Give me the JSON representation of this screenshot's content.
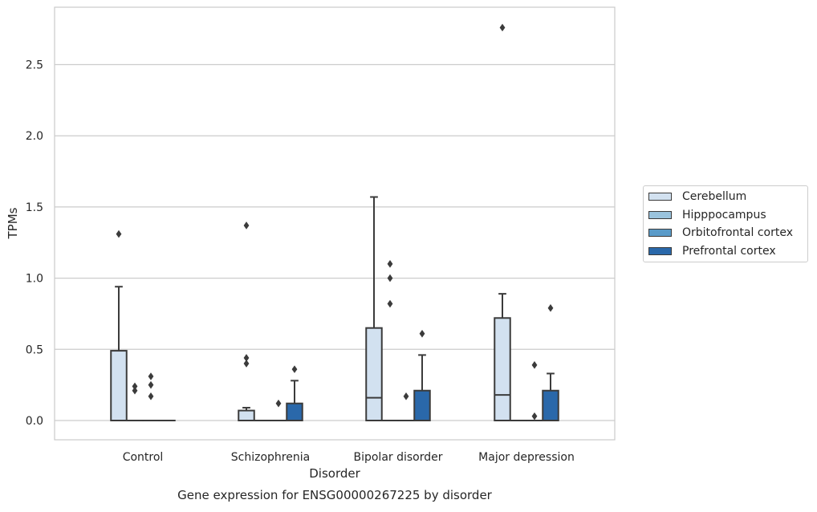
{
  "chart_data": {
    "type": "boxplot",
    "xlabel": "Disorder",
    "ylabel": "TPMs",
    "caption": "Gene expression for ENSG00000267225 by disorder",
    "ylim": [
      -0.14,
      2.91
    ],
    "yticks": [
      "0.0",
      "0.5",
      "1.0",
      "1.5",
      "2.0",
      "2.5"
    ],
    "ytick_values": [
      0.0,
      0.5,
      1.0,
      1.5,
      2.0,
      2.5
    ],
    "grid": "horizontal",
    "legend_position": "right",
    "categories": [
      "Control",
      "Schizophrenia",
      "Bipolar disorder",
      "Major depression"
    ],
    "series": [
      {
        "name": "Cerebellum",
        "color": "#d2e1f0",
        "boxes": [
          {
            "min": 0.0,
            "q1": 0.0,
            "median": 0.0,
            "q3": 0.49,
            "max": 0.94,
            "outliers": [
              1.31
            ]
          },
          {
            "min": 0.0,
            "q1": 0.0,
            "median": 0.0,
            "q3": 0.07,
            "max": 0.09,
            "outliers": [
              0.4,
              0.44,
              1.37
            ]
          },
          {
            "min": 0.0,
            "q1": 0.0,
            "median": 0.16,
            "q3": 0.65,
            "max": 1.57,
            "outliers": []
          },
          {
            "min": 0.0,
            "q1": 0.0,
            "median": 0.18,
            "q3": 0.72,
            "max": 0.89,
            "outliers": [
              2.76
            ]
          }
        ]
      },
      {
        "name": "Hipppocampus",
        "color": "#9ac3dd",
        "boxes": [
          {
            "min": 0.0,
            "q1": 0.0,
            "median": 0.0,
            "q3": 0.0,
            "max": 0.0,
            "outliers": [
              0.21,
              0.24
            ]
          },
          {
            "min": 0.0,
            "q1": 0.0,
            "median": 0.0,
            "q3": 0.0,
            "max": 0.0,
            "outliers": []
          },
          {
            "min": 0.0,
            "q1": 0.0,
            "median": 0.0,
            "q3": 0.0,
            "max": 0.0,
            "outliers": [
              0.82,
              1.0,
              1.1
            ]
          },
          {
            "min": 0.0,
            "q1": 0.0,
            "median": 0.0,
            "q3": 0.0,
            "max": 0.0,
            "outliers": []
          }
        ]
      },
      {
        "name": "Orbitofrontal cortex",
        "color": "#5a9bc9",
        "boxes": [
          {
            "min": 0.0,
            "q1": 0.0,
            "median": 0.0,
            "q3": 0.0,
            "max": 0.0,
            "outliers": [
              0.17,
              0.25,
              0.31
            ]
          },
          {
            "min": 0.0,
            "q1": 0.0,
            "median": 0.0,
            "q3": 0.0,
            "max": 0.0,
            "outliers": [
              0.12
            ]
          },
          {
            "min": 0.0,
            "q1": 0.0,
            "median": 0.0,
            "q3": 0.0,
            "max": 0.0,
            "outliers": [
              0.17
            ]
          },
          {
            "min": 0.0,
            "q1": 0.0,
            "median": 0.0,
            "q3": 0.0,
            "max": 0.0,
            "outliers": [
              0.03,
              0.39
            ]
          }
        ]
      },
      {
        "name": "Prefrontal cortex",
        "color": "#2a68aa",
        "boxes": [
          {
            "min": 0.0,
            "q1": 0.0,
            "median": 0.0,
            "q3": 0.0,
            "max": 0.0,
            "outliers": []
          },
          {
            "min": 0.0,
            "q1": 0.0,
            "median": 0.0,
            "q3": 0.12,
            "max": 0.28,
            "outliers": [
              0.36
            ]
          },
          {
            "min": 0.0,
            "q1": 0.0,
            "median": 0.0,
            "q3": 0.21,
            "max": 0.46,
            "outliers": [
              0.61
            ]
          },
          {
            "min": 0.0,
            "q1": 0.0,
            "median": 0.0,
            "q3": 0.21,
            "max": 0.33,
            "outliers": [
              0.79
            ]
          }
        ]
      }
    ]
  }
}
